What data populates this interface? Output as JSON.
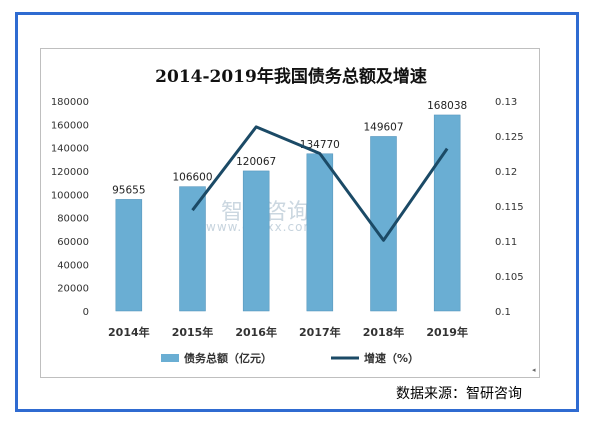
{
  "chart_data": {
    "type": "bar+line",
    "title": "2014-2019年我国债务总额及增速",
    "categories": [
      "2014年",
      "2015年",
      "2016年",
      "2017年",
      "2018年",
      "2019年"
    ],
    "series": [
      {
        "name": "债务总额（亿元）",
        "type": "bar",
        "axis": "left",
        "values": [
          95655,
          106600,
          120067,
          134770,
          149607,
          168038
        ]
      },
      {
        "name": "增速（%）",
        "type": "line",
        "axis": "right",
        "values": [
          null,
          0.1144,
          0.1263,
          0.1225,
          0.1101,
          0.1232
        ]
      }
    ],
    "y_left": {
      "min": 0,
      "max": 180000,
      "step": 20000,
      "ticks": [
        "0",
        "20000",
        "40000",
        "60000",
        "80000",
        "100000",
        "120000",
        "140000",
        "160000",
        "180000"
      ]
    },
    "y_right": {
      "min": 0.1,
      "max": 0.13,
      "step": 0.005,
      "ticks": [
        "0.1",
        "0.105",
        "0.11",
        "0.115",
        "0.12",
        "0.125",
        "0.13"
      ]
    },
    "legend_position": "bottom",
    "watermark": {
      "name": "智研咨询",
      "url": "www.chyxx.com"
    },
    "colors": {
      "bar": "#6aaed3",
      "bar_edge": "#4e8fb8",
      "line": "#1b4a66",
      "frame": "#2f6bd1"
    }
  },
  "source_text": "数据来源：智研咨询",
  "corner_mark": "◂"
}
